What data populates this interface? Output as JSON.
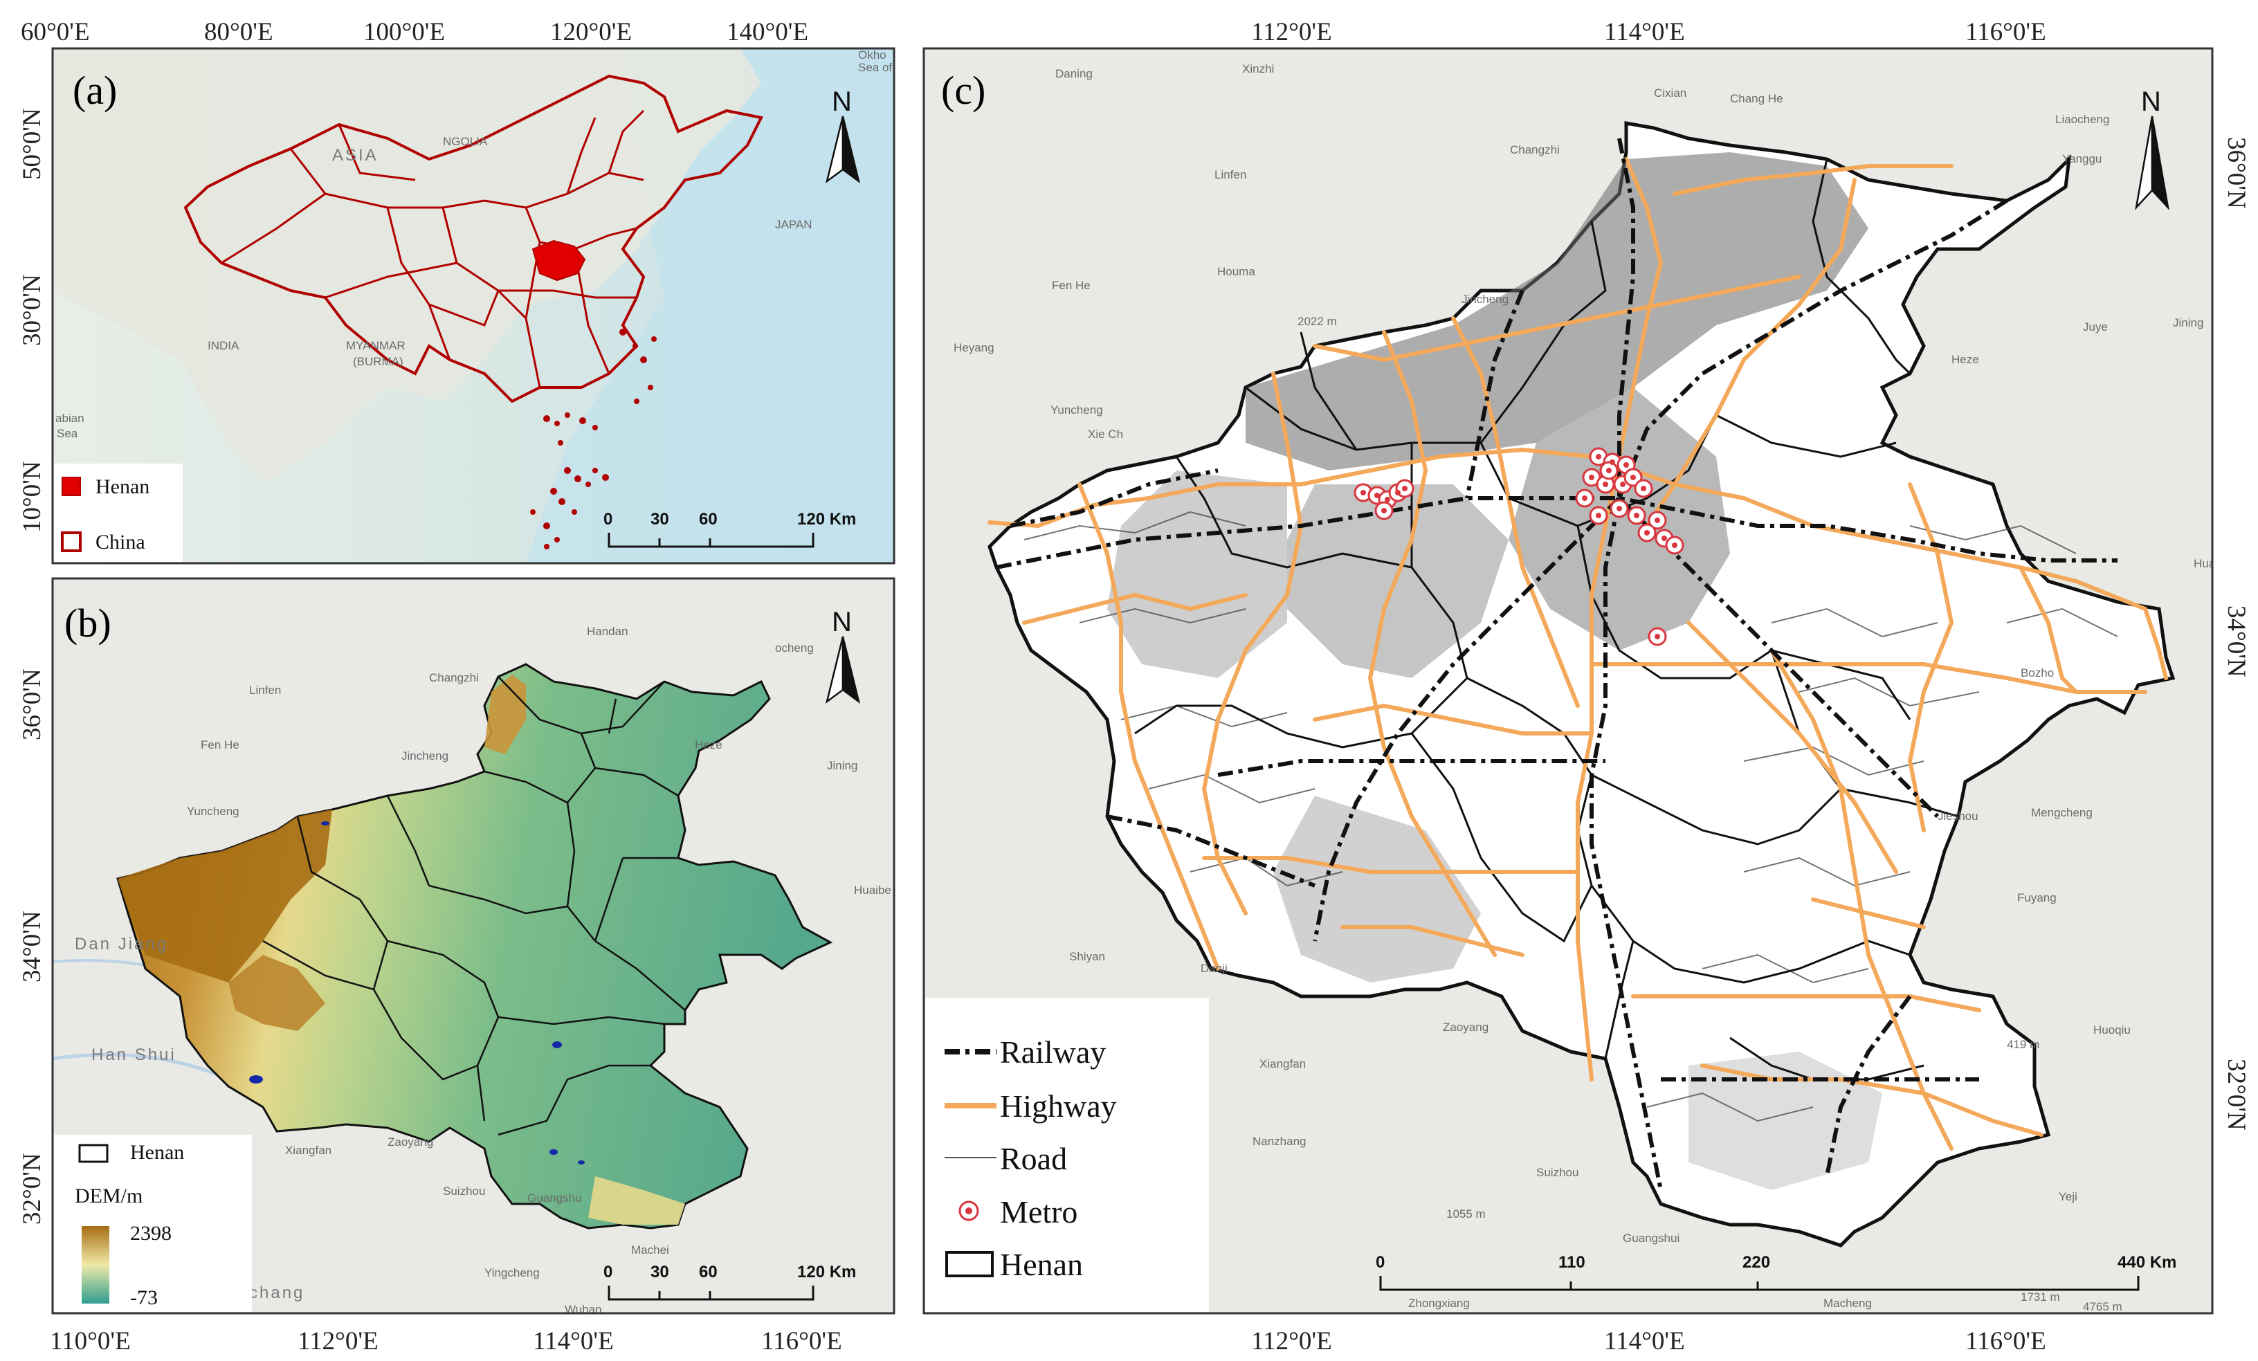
{
  "colors": {
    "province_border": "#b00000",
    "henan_fill": "#e00000",
    "highway": "#f3a85a",
    "railway": "#111111",
    "road": "#555555",
    "metro": "#d9363e",
    "dem_high": "#a66d12",
    "dem_mid": "#f0e9a8",
    "dem_low": "#2f9e8f",
    "sea": "#bfe1ef",
    "land": "#e7e8e3"
  },
  "panel_a": {
    "label": "(a)",
    "north": "N",
    "top_ticks": [
      "60°0'E",
      "80°0'E",
      "100°0'E",
      "120°0'E",
      "140°0'E"
    ],
    "left_ticks": [
      "50°0'N",
      "30°0'N",
      "10°0'N"
    ],
    "basemap_labels": [
      "ASIA",
      "NGOLIA",
      "JAPAN",
      "INDIA",
      "MYANMAR",
      "(BURMA)",
      "abian",
      "Sea",
      "Okho",
      "Sea of"
    ],
    "legend": [
      {
        "label": "Henan",
        "icon": "filled-red-square-icon"
      },
      {
        "label": "China",
        "icon": "outline-red-square-icon"
      }
    ],
    "scale": [
      "0",
      "30",
      "60",
      "120 Km"
    ]
  },
  "panel_b": {
    "label": "(b)",
    "north": "N",
    "bottom_ticks": [
      "110°0'E",
      "112°0'E",
      "114°0'E",
      "116°0'E"
    ],
    "left_ticks": [
      "36°0'N",
      "34°0'N",
      "32°0'N"
    ],
    "basemap_labels": [
      "Handan",
      "Changzhi",
      "Linfen",
      "Jincheng",
      "Yuncheng",
      "Heze",
      "Jining",
      "Huaibe",
      "Xiangfan",
      "Zaoyang",
      "Suizhou",
      "Guangshu",
      "Yingcheng",
      "Wuhan",
      "Machei",
      "Dan Jiang",
      "Han Shui",
      "chang",
      "ocheng",
      "Fen He"
    ],
    "legend": {
      "boundary": "Henan",
      "title": "DEM/m",
      "max": "2398",
      "min": "-73"
    },
    "scale": [
      "0",
      "30",
      "60",
      "120 Km"
    ]
  },
  "panel_c": {
    "label": "(c)",
    "north": "N",
    "top_ticks": [
      "112°0'E",
      "114°0'E",
      "116°0'E"
    ],
    "bottom_ticks": [
      "112°0'E",
      "114°0'E",
      "116°0'E"
    ],
    "right_ticks": [
      "36°0'N",
      "34°0'N",
      "32°0'N"
    ],
    "basemap_labels": [
      "Daning",
      "Xinzhi",
      "Linfen",
      "Houma",
      "Heyang",
      "Yuncheng",
      "Changzhi",
      "Jincheng",
      "Cixian",
      "Chang He",
      "Liaocheng",
      "Yanggu",
      "Heze",
      "Juye",
      "Jining",
      "Bozho",
      "Mengcheng",
      "Fuyang",
      "Jieshou",
      "Huoqiu",
      "Shiyan",
      "Xiangfan",
      "Zaoyang",
      "Nanzhang",
      "Suizhou",
      "Guangshui",
      "Zhongxiang",
      "Macheng",
      "Yeji",
      "Danji",
      "Hua",
      "Xie Ch",
      "Fen He",
      "2022 m",
      "1055 m",
      "419 m",
      "1731 m",
      "4765 m"
    ],
    "legend": [
      {
        "label": "Railway",
        "icon": "railway-line-icon"
      },
      {
        "label": "Highway",
        "icon": "highway-line-icon"
      },
      {
        "label": "Road",
        "icon": "road-line-icon"
      },
      {
        "label": "Metro",
        "icon": "metro-station-icon"
      },
      {
        "label": "Henan",
        "icon": "boundary-box-icon"
      }
    ],
    "scale": [
      "0",
      "110",
      "220",
      "440 Km"
    ]
  }
}
